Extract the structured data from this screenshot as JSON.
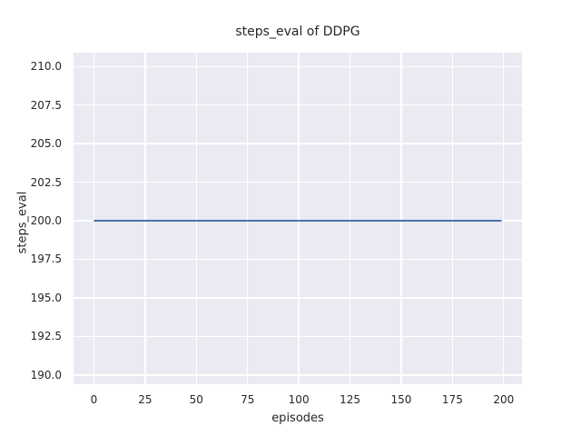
{
  "chart_data": {
    "type": "line",
    "title": "steps_eval of DDPG",
    "xlabel": "episodes",
    "ylabel": "steps_eval",
    "xlim": [
      -9.95,
      208.95
    ],
    "ylim": [
      189.4,
      210.9
    ],
    "x_ticks": [
      0,
      25,
      50,
      75,
      100,
      125,
      150,
      175,
      200
    ],
    "x_tick_labels": [
      "0",
      "25",
      "50",
      "75",
      "100",
      "125",
      "150",
      "175",
      "200"
    ],
    "y_ticks": [
      190.0,
      192.5,
      195.0,
      197.5,
      200.0,
      202.5,
      205.0,
      207.5,
      210.0
    ],
    "y_tick_labels": [
      "190.0",
      "192.5",
      "195.0",
      "197.5",
      "200.0",
      "202.5",
      "205.0",
      "207.5",
      "210.0"
    ],
    "grid": true,
    "legend_position": "none",
    "series": [
      {
        "name": "steps_eval",
        "color": "#4C72B0",
        "x": [
          0,
          199
        ],
        "y": [
          200,
          200
        ],
        "note": "constant value 200 across all 200 evaluation episodes"
      }
    ],
    "colors": {
      "figure_background": "#FFFFFF",
      "axes_background": "#EAEAF2",
      "grid": "#FFFFFF",
      "text": "#262626"
    }
  }
}
